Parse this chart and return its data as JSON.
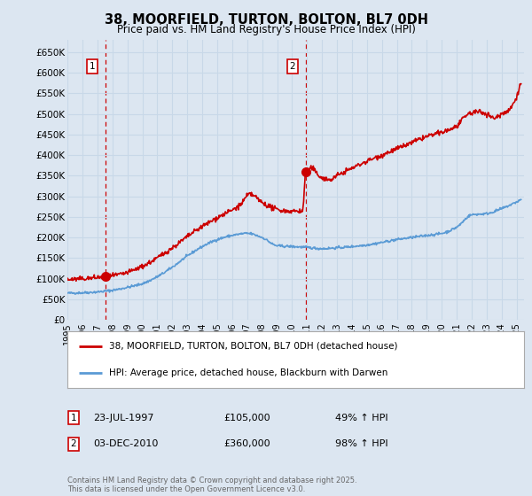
{
  "title": "38, MOORFIELD, TURTON, BOLTON, BL7 0DH",
  "subtitle": "Price paid vs. HM Land Registry's House Price Index (HPI)",
  "background_color": "#dce6f1",
  "plot_bg_color": "#dce6f1",
  "ylim": [
    0,
    680000
  ],
  "yticks": [
    0,
    50000,
    100000,
    150000,
    200000,
    250000,
    300000,
    350000,
    400000,
    450000,
    500000,
    550000,
    600000,
    650000
  ],
  "ytick_labels": [
    "£0",
    "£50K",
    "£100K",
    "£150K",
    "£200K",
    "£250K",
    "£300K",
    "£350K",
    "£400K",
    "£450K",
    "£500K",
    "£550K",
    "£600K",
    "£650K"
  ],
  "xlim_start": 1995.0,
  "xlim_end": 2025.5,
  "xtick_years": [
    1995,
    1996,
    1997,
    1998,
    1999,
    2000,
    2001,
    2002,
    2003,
    2004,
    2005,
    2006,
    2007,
    2008,
    2009,
    2010,
    2011,
    2012,
    2013,
    2014,
    2015,
    2016,
    2017,
    2018,
    2019,
    2020,
    2021,
    2022,
    2023,
    2024,
    2025
  ],
  "grid_color": "#c8d8e8",
  "hpi_line_color": "#5b9bd5",
  "price_line_color": "#cc0000",
  "purchase1_x": 1997.55,
  "purchase1_y": 105000,
  "purchase1_label": "1",
  "purchase1_date": "23-JUL-1997",
  "purchase1_price": "£105,000",
  "purchase1_hpi": "49% ↑ HPI",
  "purchase2_x": 2010.92,
  "purchase2_y": 360000,
  "purchase2_label": "2",
  "purchase2_date": "03-DEC-2010",
  "purchase2_price": "£360,000",
  "purchase2_hpi": "98% ↑ HPI",
  "vline_color": "#cc0000",
  "marker_color": "#cc0000",
  "legend_line1": "38, MOORFIELD, TURTON, BOLTON, BL7 0DH (detached house)",
  "legend_line2": "HPI: Average price, detached house, Blackburn with Darwen",
  "footnote": "Contains HM Land Registry data © Crown copyright and database right 2025.\nThis data is licensed under the Open Government Licence v3.0."
}
